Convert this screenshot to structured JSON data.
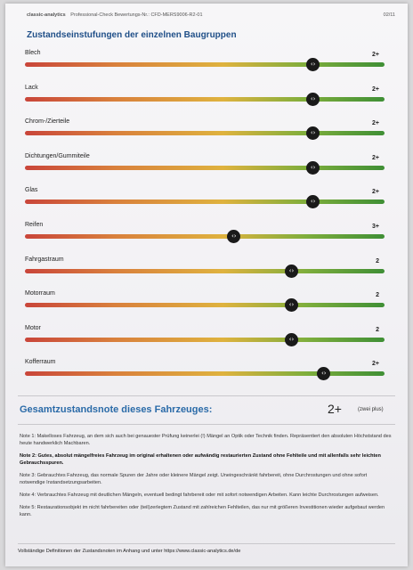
{
  "header": {
    "brand": "classic-analytics",
    "doc": "Professional-Check Bewertungs-Nr.: CFD-MERS9006-R2-01",
    "page": "02/11"
  },
  "title": "Zustandseinstufungen der einzelnen Baugruppen",
  "groups": [
    {
      "name": "Blech",
      "grade": "2+",
      "level": 0.8
    },
    {
      "name": "Lack",
      "grade": "2+",
      "level": 0.8
    },
    {
      "name": "Chrom-/Zierteile",
      "grade": "2+",
      "level": 0.8
    },
    {
      "name": "Dichtungen/Gummiteile",
      "grade": "2+",
      "level": 0.8
    },
    {
      "name": "Glas",
      "grade": "2+",
      "level": 0.8
    },
    {
      "name": "Reifen",
      "grade": "3+",
      "level": 0.58
    },
    {
      "name": "Fahrgastraum",
      "grade": "2",
      "level": 0.74
    },
    {
      "name": "Motorraum",
      "grade": "2",
      "level": 0.74
    },
    {
      "name": "Motor",
      "grade": "2",
      "level": 0.74
    },
    {
      "name": "Kofferraum",
      "grade": "2+",
      "level": 0.83
    }
  ],
  "overall": {
    "title": "Gesamtzustandsnote dieses Fahrzeuges:",
    "value": "2+",
    "sub": "(zwei plus)"
  },
  "notes": [
    {
      "text": "Note 1: Makelloses Fahrzeug, an dem sich auch bei genauester Prüfung keinerlei (!) Mängel an Optik oder Technik finden. Repräsentiert den absoluten Höchststand des heute handwerklich Machbaren.",
      "bold": false
    },
    {
      "text": "Note 2: Gutes, absolut mängelfreies Fahrzeug im original erhaltenen oder aufwändig restaurierten Zustand ohne Fehlteile und mit allenfalls sehr leichten Gebrauchsspuren.",
      "bold": true
    },
    {
      "text": "Note 3: Gebrauchtes Fahrzeug, das normale Spuren der Jahre oder kleinere Mängel zeigt. Uneingeschränkt fahrbereit, ohne Durchrostungen und ohne sofort notwendige Instandsetzungsarbeiten.",
      "bold": false
    },
    {
      "text": "Note 4: Verbrauchtes Fahrzeug mit deutlichen Mängeln, eventuell bedingt fahrbereit oder mit sofort notwendigen Arbeiten. Kann leichte Durchrostungen aufweisen.",
      "bold": false
    },
    {
      "text": "Note 5: Restaurationsobjekt im nicht fahrbereiten oder (teil)zerlegtem Zustand mit zahlreichen Fehlteilen, das nur mit größeren Investitionen wieder aufgebaut werden kann.",
      "bold": false
    }
  ],
  "footer": "Vollständige Definitionen der Zustandsnoten im Anhang und unter https://www.classic-analytics.de/de"
}
